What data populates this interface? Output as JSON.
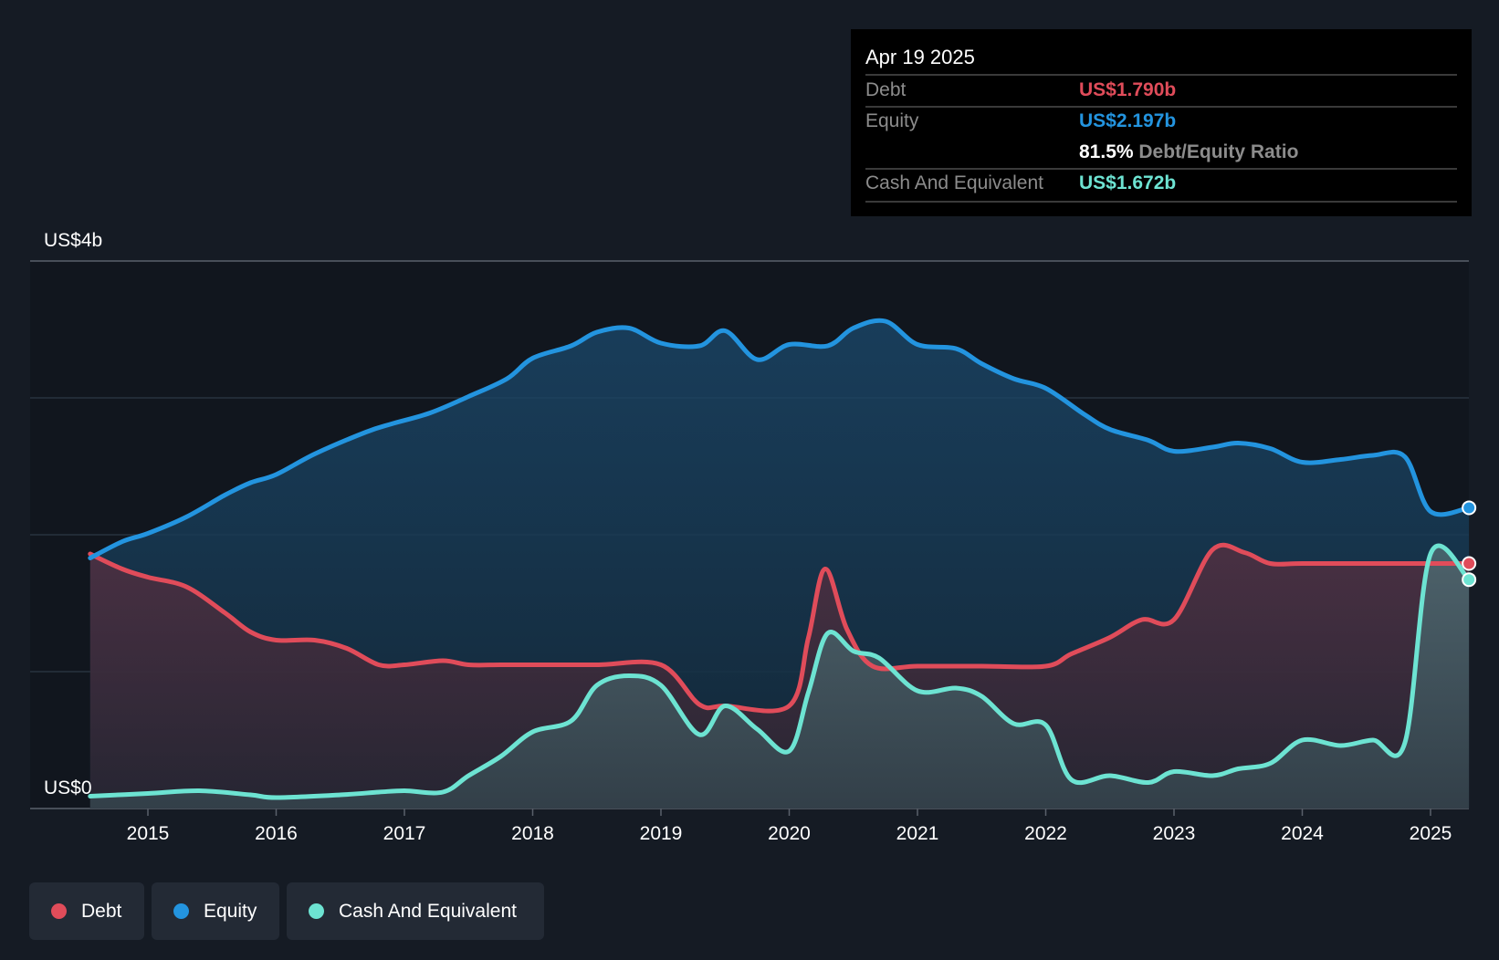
{
  "chart_data": {
    "type": "area",
    "y_axis_top_label": "US$4b",
    "y_axis_bottom_label": "US$0",
    "ylim": [
      0,
      4.0
    ],
    "gridlines": [
      0,
      1,
      2,
      3,
      4
    ],
    "x_ticks": [
      "2015",
      "2016",
      "2017",
      "2018",
      "2019",
      "2020",
      "2021",
      "2022",
      "2023",
      "2024",
      "2025"
    ],
    "x_tick_values": [
      2015,
      2016,
      2017,
      2018,
      2019,
      2020,
      2021,
      2022,
      2023,
      2024,
      2025
    ],
    "xlim": [
      2014.55,
      2025.3
    ],
    "series": [
      {
        "name": "Equity",
        "color": "#2394df",
        "points": [
          [
            2014.55,
            1.83
          ],
          [
            2014.8,
            1.95
          ],
          [
            2015.0,
            2.01
          ],
          [
            2015.3,
            2.13
          ],
          [
            2015.6,
            2.29
          ],
          [
            2015.8,
            2.38
          ],
          [
            2016.0,
            2.44
          ],
          [
            2016.3,
            2.59
          ],
          [
            2016.7,
            2.75
          ],
          [
            2016.9,
            2.81
          ],
          [
            2017.2,
            2.89
          ],
          [
            2017.5,
            3.01
          ],
          [
            2017.8,
            3.14
          ],
          [
            2018.0,
            3.29
          ],
          [
            2018.3,
            3.38
          ],
          [
            2018.5,
            3.48
          ],
          [
            2018.75,
            3.51
          ],
          [
            2019.0,
            3.4
          ],
          [
            2019.3,
            3.38
          ],
          [
            2019.5,
            3.49
          ],
          [
            2019.75,
            3.28
          ],
          [
            2020.0,
            3.39
          ],
          [
            2020.3,
            3.38
          ],
          [
            2020.5,
            3.51
          ],
          [
            2020.75,
            3.56
          ],
          [
            2021.0,
            3.39
          ],
          [
            2021.3,
            3.36
          ],
          [
            2021.5,
            3.25
          ],
          [
            2021.75,
            3.14
          ],
          [
            2022.0,
            3.07
          ],
          [
            2022.3,
            2.88
          ],
          [
            2022.5,
            2.77
          ],
          [
            2022.8,
            2.69
          ],
          [
            2023.0,
            2.61
          ],
          [
            2023.3,
            2.64
          ],
          [
            2023.5,
            2.67
          ],
          [
            2023.75,
            2.63
          ],
          [
            2024.0,
            2.53
          ],
          [
            2024.3,
            2.55
          ],
          [
            2024.55,
            2.58
          ],
          [
            2024.8,
            2.57
          ],
          [
            2025.0,
            2.17
          ],
          [
            2025.3,
            2.197
          ]
        ]
      },
      {
        "name": "Debt",
        "color": "#e04c5a",
        "points": [
          [
            2014.55,
            1.86
          ],
          [
            2014.8,
            1.75
          ],
          [
            2015.0,
            1.69
          ],
          [
            2015.3,
            1.62
          ],
          [
            2015.6,
            1.43
          ],
          [
            2015.8,
            1.29
          ],
          [
            2016.0,
            1.23
          ],
          [
            2016.3,
            1.23
          ],
          [
            2016.55,
            1.17
          ],
          [
            2016.8,
            1.05
          ],
          [
            2017.0,
            1.05
          ],
          [
            2017.3,
            1.08
          ],
          [
            2017.5,
            1.05
          ],
          [
            2017.75,
            1.05
          ],
          [
            2018.0,
            1.05
          ],
          [
            2018.5,
            1.05
          ],
          [
            2019.0,
            1.05
          ],
          [
            2019.3,
            0.76
          ],
          [
            2019.5,
            0.75
          ],
          [
            2020.0,
            0.75
          ],
          [
            2020.15,
            1.25
          ],
          [
            2020.28,
            1.75
          ],
          [
            2020.45,
            1.31
          ],
          [
            2020.65,
            1.04
          ],
          [
            2021.0,
            1.04
          ],
          [
            2021.5,
            1.04
          ],
          [
            2022.0,
            1.04
          ],
          [
            2022.2,
            1.13
          ],
          [
            2022.5,
            1.25
          ],
          [
            2022.75,
            1.38
          ],
          [
            2023.0,
            1.38
          ],
          [
            2023.3,
            1.89
          ],
          [
            2023.55,
            1.87
          ],
          [
            2023.75,
            1.79
          ],
          [
            2024.0,
            1.79
          ],
          [
            2024.5,
            1.79
          ],
          [
            2025.0,
            1.79
          ],
          [
            2025.3,
            1.79
          ]
        ]
      },
      {
        "name": "Cash And Equivalent",
        "color": "#6de3d2",
        "points": [
          [
            2014.55,
            0.09
          ],
          [
            2015.0,
            0.11
          ],
          [
            2015.4,
            0.13
          ],
          [
            2015.8,
            0.1
          ],
          [
            2016.0,
            0.08
          ],
          [
            2016.5,
            0.1
          ],
          [
            2016.8,
            0.12
          ],
          [
            2017.0,
            0.13
          ],
          [
            2017.3,
            0.12
          ],
          [
            2017.5,
            0.24
          ],
          [
            2017.75,
            0.38
          ],
          [
            2018.0,
            0.56
          ],
          [
            2018.3,
            0.64
          ],
          [
            2018.5,
            0.9
          ],
          [
            2018.75,
            0.97
          ],
          [
            2019.0,
            0.9
          ],
          [
            2019.3,
            0.54
          ],
          [
            2019.5,
            0.75
          ],
          [
            2019.75,
            0.58
          ],
          [
            2020.0,
            0.42
          ],
          [
            2020.15,
            0.85
          ],
          [
            2020.3,
            1.28
          ],
          [
            2020.5,
            1.15
          ],
          [
            2020.7,
            1.1
          ],
          [
            2021.0,
            0.86
          ],
          [
            2021.3,
            0.88
          ],
          [
            2021.5,
            0.82
          ],
          [
            2021.75,
            0.62
          ],
          [
            2022.0,
            0.61
          ],
          [
            2022.2,
            0.21
          ],
          [
            2022.5,
            0.24
          ],
          [
            2022.8,
            0.19
          ],
          [
            2023.0,
            0.27
          ],
          [
            2023.3,
            0.24
          ],
          [
            2023.5,
            0.29
          ],
          [
            2023.75,
            0.33
          ],
          [
            2024.0,
            0.5
          ],
          [
            2024.3,
            0.46
          ],
          [
            2024.55,
            0.5
          ],
          [
            2024.8,
            0.48
          ],
          [
            2025.0,
            1.86
          ],
          [
            2025.3,
            1.672
          ]
        ]
      }
    ]
  },
  "tooltip": {
    "date": "Apr 19 2025",
    "debt_label": "Debt",
    "debt_value": "US$1.790b",
    "equity_label": "Equity",
    "equity_value": "US$2.197b",
    "ratio_value": "81.5%",
    "ratio_label": "Debt/Equity Ratio",
    "cash_label": "Cash And Equivalent",
    "cash_value": "US$1.672b"
  },
  "legend": {
    "debt": "Debt",
    "equity": "Equity",
    "cash": "Cash And Equivalent"
  },
  "colors": {
    "debt": "#e04c5a",
    "equity": "#2394df",
    "cash": "#6de3d2",
    "background": "#151b24"
  }
}
